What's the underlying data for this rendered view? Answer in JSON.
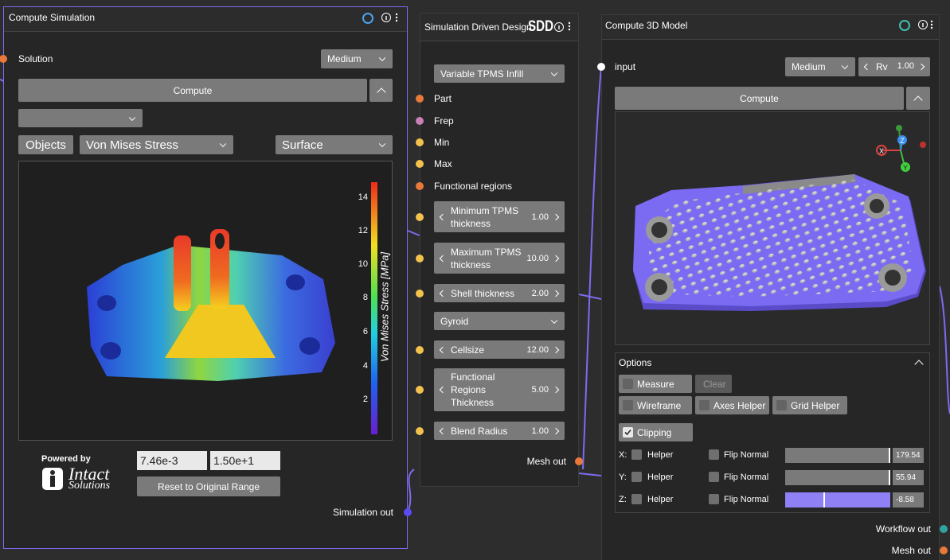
{
  "compute_simulation": {
    "title": "Compute Simulation",
    "solution_label": "Solution",
    "quality": "Medium",
    "compute": "Compute",
    "objects": "Objects",
    "field": "Von Mises Stress",
    "display": "Surface",
    "colorbar_label": "Von Mises Stress [MPa]",
    "colorbar_ticks": [
      "14",
      "12",
      "10",
      "8",
      "6",
      "4",
      "2"
    ],
    "powered_by": "Powered by",
    "brand": "Intact",
    "brand_sub": "Solutions",
    "range_min": "7.46e-3",
    "range_max": "1.50e+1",
    "reset": "Reset to Original Range",
    "output": "Simulation out"
  },
  "sdd": {
    "title": "Simulation Driven Design",
    "logo": "SDD",
    "infill": "Variable TPMS Infill",
    "inputs": [
      "Part",
      "Frep",
      "Min",
      "Max",
      "Functional regions"
    ],
    "params": [
      {
        "label": "Minimum TPMS thickness",
        "value": "1.00"
      },
      {
        "label": "Maximum TPMS thickness",
        "value": "10.00"
      },
      {
        "label": "Shell thickness",
        "value": "2.00"
      },
      {
        "dropdown": "Gyroid"
      },
      {
        "label": "Cellsize",
        "value": "12.00"
      },
      {
        "label": "Functional Regions Thickness",
        "value": "5.00"
      },
      {
        "label": "Blend Radius",
        "value": "1.00"
      }
    ],
    "output": "Mesh out"
  },
  "compute_3d": {
    "title": "Compute 3D Model",
    "input": "input",
    "quality": "Medium",
    "rv_label": "Rv",
    "rv_value": "1.00",
    "compute": "Compute",
    "gizmo": [
      "X",
      "Y",
      "Z"
    ],
    "options": "Options",
    "buttons": [
      "Measure",
      "Clear",
      "Wireframe",
      "Axes Helper",
      "Grid Helper",
      "Clipping"
    ],
    "clip_rows": [
      {
        "axis": "X:",
        "helper": "Helper",
        "flip": "Flip Normal",
        "value": "179.54"
      },
      {
        "axis": "Y:",
        "helper": "Helper",
        "flip": "Flip Normal",
        "value": "55.94"
      },
      {
        "axis": "Z:",
        "helper": "Helper",
        "flip": "Flip Normal",
        "value": "-8.58"
      }
    ],
    "outputs": [
      "Workflow out",
      "Mesh out"
    ]
  }
}
